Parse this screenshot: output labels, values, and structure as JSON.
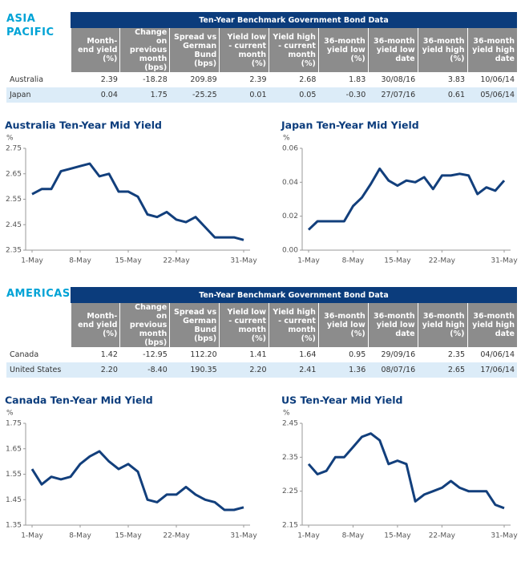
{
  "sections": [
    {
      "heading": "ASIA PACIFIC",
      "table": {
        "title": "Ten-Year Benchmark Government Bond Data",
        "columns": [
          "Month-end yield (%)",
          "Change on previous month (bps)",
          "Spread vs German Bund (bps)",
          "Yield low - current month (%)",
          "Yield high - current month (%)",
          "36-month yield low (%)",
          "36-month yield low date",
          "36-month yield high (%)",
          "36-month yield high date"
        ],
        "rows": [
          [
            "Australia",
            "2.39",
            "-18.28",
            "209.89",
            "2.39",
            "2.68",
            "1.83",
            "30/08/16",
            "3.83",
            "10/06/14"
          ],
          [
            "Japan",
            "0.04",
            "1.75",
            "-25.25",
            "0.01",
            "0.05",
            "-0.30",
            "27/07/16",
            "0.61",
            "05/06/14"
          ]
        ]
      }
    },
    {
      "heading": "AMERICAS",
      "table": {
        "title": "Ten-Year Benchmark Government Bond Data",
        "columns": [
          "Month-end yield (%)",
          "Change on previous month (bps)",
          "Spread vs German Bund (bps)",
          "Yield low - current month (%)",
          "Yield high - current month (%)",
          "36-month yield low (%)",
          "36-month yield low date",
          "36-month yield high (%)",
          "36-month yield high date"
        ],
        "rows": [
          [
            "Canada",
            "1.42",
            "-12.95",
            "112.20",
            "1.41",
            "1.64",
            "0.95",
            "29/09/16",
            "2.35",
            "04/06/14"
          ],
          [
            "United States",
            "2.20",
            "-8.40",
            "190.35",
            "2.20",
            "2.41",
            "1.36",
            "08/07/16",
            "2.65",
            "17/06/14"
          ]
        ]
      }
    }
  ],
  "chart_data": [
    {
      "type": "line",
      "title": "Australia Ten-Year Mid Yield",
      "y_label": "%",
      "color": "#123f7c",
      "categories": [
        "1-May",
        null,
        null,
        null,
        null,
        "8-May",
        null,
        null,
        null,
        null,
        "15-May",
        null,
        null,
        null,
        null,
        "22-May",
        null,
        null,
        null,
        null,
        null,
        null,
        "31-May"
      ],
      "values": [
        2.57,
        2.59,
        2.59,
        2.66,
        2.67,
        2.68,
        2.69,
        2.64,
        2.65,
        2.58,
        2.58,
        2.56,
        2.49,
        2.48,
        2.5,
        2.47,
        2.46,
        2.48,
        2.44,
        2.4,
        2.4,
        2.4,
        2.39
      ],
      "ylim": [
        2.35,
        2.75
      ],
      "yticks": [
        2.35,
        2.45,
        2.55,
        2.65,
        2.75
      ]
    },
    {
      "type": "line",
      "title": "Japan Ten-Year Mid Yield",
      "y_label": "%",
      "color": "#123f7c",
      "categories": [
        "1-May",
        null,
        null,
        null,
        null,
        "8-May",
        null,
        null,
        null,
        null,
        "15-May",
        null,
        null,
        null,
        null,
        "22-May",
        null,
        null,
        null,
        null,
        null,
        null,
        "31-May"
      ],
      "values": [
        0.012,
        0.017,
        0.017,
        0.017,
        0.017,
        0.026,
        0.031,
        0.039,
        0.048,
        0.041,
        0.038,
        0.041,
        0.04,
        0.043,
        0.036,
        0.044,
        0.044,
        0.045,
        0.044,
        0.033,
        0.037,
        0.035,
        0.041
      ],
      "ylim": [
        0,
        0.06
      ],
      "yticks": [
        {
          "value": 0,
          "label": "0.00"
        },
        0.02,
        0.04,
        0.06
      ]
    },
    {
      "type": "line",
      "title": "Canada Ten-Year Mid Yield",
      "y_label": "%",
      "color": "#123f7c",
      "categories": [
        "1-May",
        null,
        null,
        null,
        null,
        "8-May",
        null,
        null,
        null,
        null,
        "15-May",
        null,
        null,
        null,
        null,
        "22-May",
        null,
        null,
        null,
        null,
        null,
        null,
        "31-May"
      ],
      "values": [
        1.57,
        1.51,
        1.54,
        1.53,
        1.54,
        1.59,
        1.62,
        1.64,
        1.6,
        1.57,
        1.59,
        1.56,
        1.45,
        1.44,
        1.47,
        1.47,
        1.5,
        1.47,
        1.45,
        1.44,
        1.41,
        1.41,
        1.42
      ],
      "ylim": [
        1.35,
        1.75
      ],
      "yticks": [
        1.35,
        1.45,
        1.55,
        1.65,
        1.75
      ]
    },
    {
      "type": "line",
      "title": "US Ten-Year Mid Yield",
      "y_label": "%",
      "color": "#123f7c",
      "categories": [
        "1-May",
        null,
        null,
        null,
        null,
        "8-May",
        null,
        null,
        null,
        null,
        "15-May",
        null,
        null,
        null,
        null,
        "22-May",
        null,
        null,
        null,
        null,
        null,
        null,
        "31-May"
      ],
      "values": [
        2.33,
        2.3,
        2.31,
        2.35,
        2.35,
        2.38,
        2.41,
        2.42,
        2.4,
        2.33,
        2.34,
        2.33,
        2.22,
        2.24,
        2.25,
        2.26,
        2.28,
        2.26,
        2.25,
        2.25,
        2.25,
        2.21,
        2.2
      ],
      "ylim": [
        2.15,
        2.45
      ],
      "yticks": [
        2.15,
        2.25,
        2.35,
        2.45
      ]
    }
  ]
}
